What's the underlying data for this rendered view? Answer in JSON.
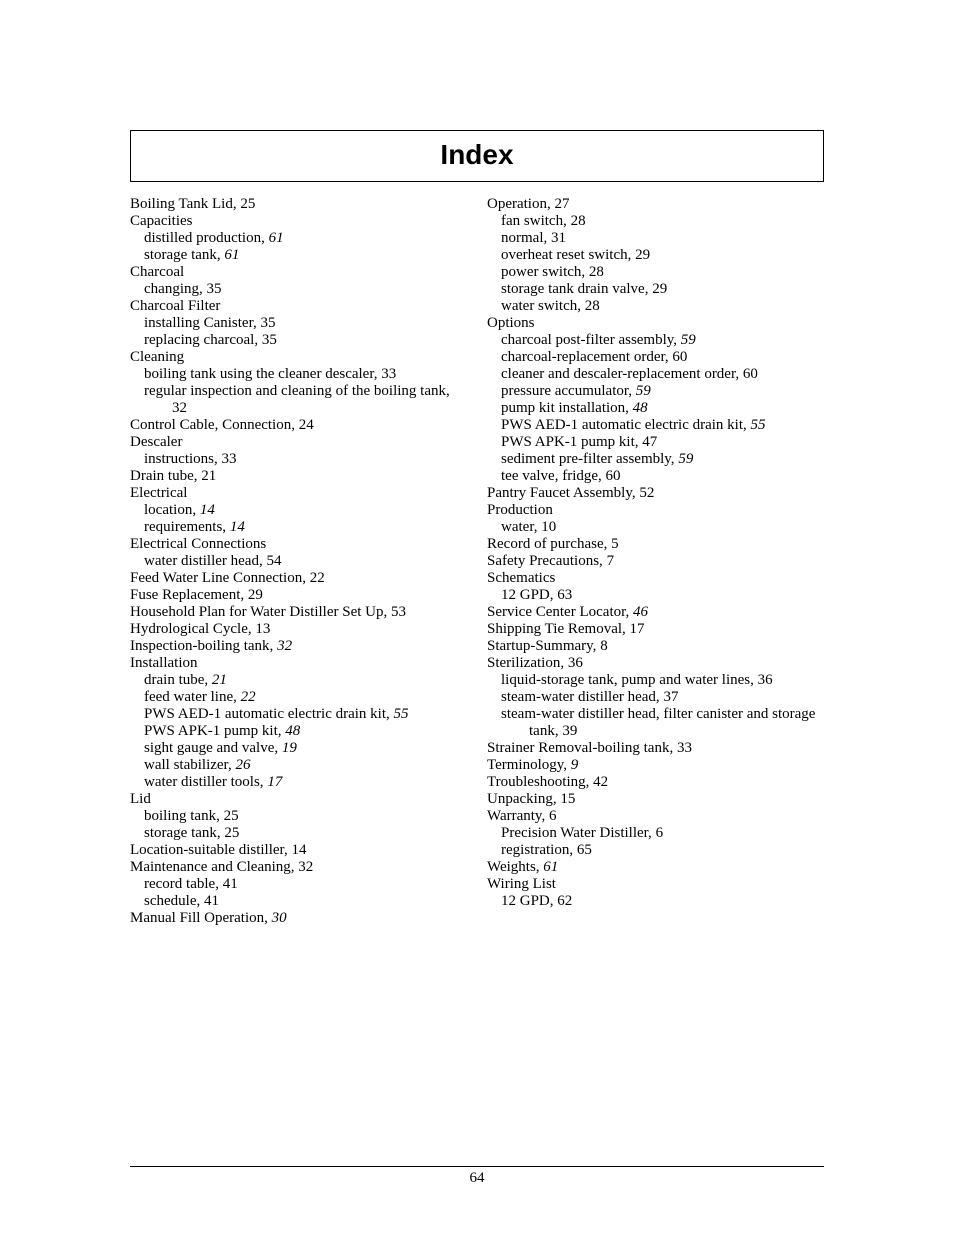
{
  "title": "Index",
  "page_number": "64",
  "columns": [
    [
      {
        "l": 0,
        "t": "Boiling Tank Lid, ",
        "p": "25"
      },
      {
        "l": 0,
        "t": "Capacities"
      },
      {
        "l": 1,
        "t": "distilled production, ",
        "pi": "61"
      },
      {
        "l": 1,
        "t": "storage tank, ",
        "pi": "61"
      },
      {
        "l": 0,
        "t": "Charcoal"
      },
      {
        "l": 1,
        "t": "changing, ",
        "p": "35"
      },
      {
        "l": 0,
        "t": "Charcoal Filter"
      },
      {
        "l": 1,
        "t": "installing Canister, ",
        "p": "35"
      },
      {
        "l": 1,
        "t": "replacing charcoal, ",
        "p": "35"
      },
      {
        "l": 0,
        "t": "Cleaning"
      },
      {
        "l": 1,
        "t": "boiling tank using the cleaner descaler, ",
        "p": "33"
      },
      {
        "l": 1,
        "t": "regular inspection and cleaning of the boiling tank, ",
        "p": "32"
      },
      {
        "l": 0,
        "t": "Control Cable, Connection, ",
        "p": "24"
      },
      {
        "l": 0,
        "t": "Descaler"
      },
      {
        "l": 1,
        "t": "instructions, ",
        "p": "33"
      },
      {
        "l": 0,
        "t": "Drain tube, ",
        "p": "21"
      },
      {
        "l": 0,
        "t": "Electrical"
      },
      {
        "l": 1,
        "t": "location, ",
        "pi": "14"
      },
      {
        "l": 1,
        "t": "requirements, ",
        "pi": "14"
      },
      {
        "l": 0,
        "t": "Electrical Connections"
      },
      {
        "l": 1,
        "t": "water distiller head, ",
        "p": "54"
      },
      {
        "l": 0,
        "t": "Feed Water Line Connection, ",
        "p": "22"
      },
      {
        "l": 0,
        "t": "Fuse Replacement, ",
        "p": "29"
      },
      {
        "l": 0,
        "t": "Household Plan for Water Distiller Set Up, ",
        "p": "53"
      },
      {
        "l": 0,
        "t": "Hydrological Cycle, ",
        "p": "13"
      },
      {
        "l": 0,
        "t": "Inspection-boiling tank, ",
        "pi": "32"
      },
      {
        "l": 0,
        "t": "Installation"
      },
      {
        "l": 1,
        "t": "drain tube, ",
        "pi": "21"
      },
      {
        "l": 1,
        "t": "feed water line, ",
        "pi": "22"
      },
      {
        "l": 1,
        "t": "PWS AED-1 automatic electric drain kit, ",
        "pi": "55"
      },
      {
        "l": 1,
        "t": "PWS APK-1 pump kit, ",
        "pi": "48"
      },
      {
        "l": 1,
        "t": "sight gauge and valve, ",
        "pi": "19"
      },
      {
        "l": 1,
        "t": "wall stabilizer, ",
        "pi": "26"
      },
      {
        "l": 1,
        "t": "water distiller tools, ",
        "pi": "17"
      },
      {
        "l": 0,
        "t": "Lid"
      },
      {
        "l": 1,
        "t": "boiling tank, ",
        "p": "25"
      },
      {
        "l": 1,
        "t": "storage tank, ",
        "p": "25"
      },
      {
        "l": 0,
        "t": "Location-suitable distiller, ",
        "p": "14"
      },
      {
        "l": 0,
        "t": "Maintenance and Cleaning, ",
        "p": "32"
      },
      {
        "l": 1,
        "t": "record table, ",
        "p": "41"
      },
      {
        "l": 1,
        "t": "schedule, ",
        "p": "41"
      },
      {
        "l": 0,
        "t": "Manual Fill Operation, ",
        "pi": "30"
      }
    ],
    [
      {
        "l": 0,
        "t": "Operation, ",
        "p": "27"
      },
      {
        "l": 1,
        "t": "fan switch, ",
        "p": "28"
      },
      {
        "l": 1,
        "t": "normal, ",
        "p": "31"
      },
      {
        "l": 1,
        "t": "overheat reset switch, ",
        "p": "29"
      },
      {
        "l": 1,
        "t": "power switch, ",
        "p": "28"
      },
      {
        "l": 1,
        "t": "storage tank drain valve, ",
        "p": "29"
      },
      {
        "l": 1,
        "t": "water switch, ",
        "p": "28"
      },
      {
        "l": 0,
        "t": "Options"
      },
      {
        "l": 1,
        "t": "charcoal post-filter assembly, ",
        "pi": "59"
      },
      {
        "l": 1,
        "t": "charcoal-replacement order, ",
        "p": "60"
      },
      {
        "l": 1,
        "t": "cleaner and descaler-replacement order, ",
        "p": "60"
      },
      {
        "l": 1,
        "t": "pressure accumulator, ",
        "pi": "59"
      },
      {
        "l": 1,
        "t": "pump kit installation, ",
        "pi": "48"
      },
      {
        "l": 1,
        "t": "PWS AED-1 automatic electric drain kit, ",
        "pi": "55"
      },
      {
        "l": 1,
        "t": "PWS APK-1 pump kit, ",
        "p": "47"
      },
      {
        "l": 1,
        "t": "sediment pre-filter assembly, ",
        "pi": "59"
      },
      {
        "l": 1,
        "t": "tee valve, fridge, ",
        "p": "60"
      },
      {
        "l": 0,
        "t": "Pantry Faucet Assembly, ",
        "p": "52"
      },
      {
        "l": 0,
        "t": "Production"
      },
      {
        "l": 1,
        "t": "water, ",
        "p": "10"
      },
      {
        "l": 0,
        "t": "Record of purchase, ",
        "p": "5"
      },
      {
        "l": 0,
        "t": "Safety Precautions, ",
        "p": "7"
      },
      {
        "l": 0,
        "t": "Schematics"
      },
      {
        "l": 1,
        "t": "12 GPD, ",
        "p": "63"
      },
      {
        "l": 0,
        "t": "Service Center Locator, ",
        "pi": "46"
      },
      {
        "l": 0,
        "t": "Shipping Tie Removal, ",
        "p": "17"
      },
      {
        "l": 0,
        "t": "Startup-Summary, ",
        "p": "8"
      },
      {
        "l": 0,
        "t": "Sterilization, ",
        "p": "36"
      },
      {
        "l": 1,
        "t": "liquid-storage tank, pump and water lines, ",
        "p": "36"
      },
      {
        "l": 1,
        "t": "steam-water distiller head, ",
        "p": "37"
      },
      {
        "l": 1,
        "t": "steam-water distiller head, filter canister and storage tank, ",
        "p": "39"
      },
      {
        "l": 0,
        "t": "Strainer Removal-boiling tank, ",
        "p": "33"
      },
      {
        "l": 0,
        "t": "Terminology, ",
        "pi": "9"
      },
      {
        "l": 0,
        "t": "Troubleshooting, ",
        "p": "42"
      },
      {
        "l": 0,
        "t": "Unpacking, ",
        "p": "15"
      },
      {
        "l": 0,
        "t": "Warranty, ",
        "p": "6"
      },
      {
        "l": 1,
        "t": "Precision Water Distiller, ",
        "p": "6"
      },
      {
        "l": 1,
        "t": "registration, ",
        "p": "65"
      },
      {
        "l": 0,
        "t": "Weights, ",
        "pi": "61"
      },
      {
        "l": 0,
        "t": "Wiring List"
      },
      {
        "l": 1,
        "t": "12 GPD, ",
        "p": "62"
      }
    ]
  ]
}
